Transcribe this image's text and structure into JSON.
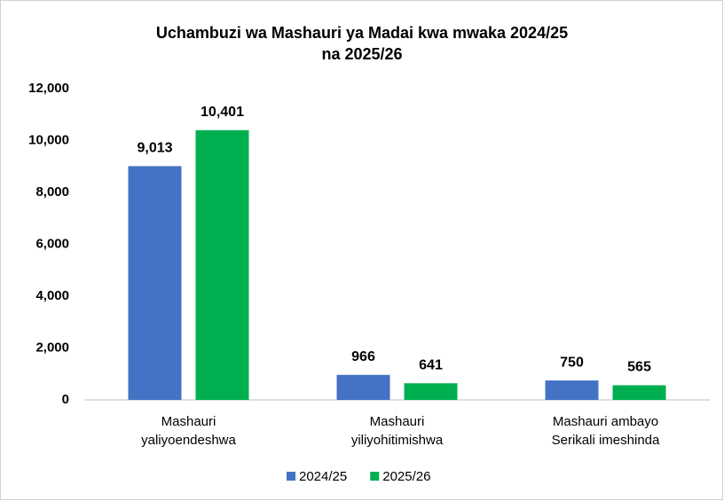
{
  "chart_data": {
    "type": "bar",
    "title": [
      "Uchambuzi wa Mashauri ya Madai kwa mwaka 2024/25",
      "na 2025/26"
    ],
    "categories": [
      [
        "Mashauri",
        "yaliyoendeshwa"
      ],
      [
        "Mashauri",
        "yiliyohitimishwa"
      ],
      [
        "Mashauri ambayo",
        "Serikali imeshinda"
      ]
    ],
    "series": [
      {
        "name": "2024/25",
        "color": "#4472c4",
        "values": [
          9013,
          966,
          750
        ],
        "value_labels": [
          "9,013",
          "966",
          "750"
        ]
      },
      {
        "name": "2025/26",
        "color": "#00b050",
        "values": [
          10401,
          641,
          565
        ],
        "value_labels": [
          "10,401",
          "641",
          "565"
        ]
      }
    ],
    "ylim": [
      0,
      12000
    ],
    "yticks": [
      0,
      {
        "value": 2000,
        "label": "2,000"
      },
      {
        "value": 4000,
        "label": "4,000"
      },
      {
        "value": 6000,
        "label": "6,000"
      },
      {
        "value": 8000,
        "label": "8,000"
      },
      {
        "value": 10000,
        "label": "10,000"
      },
      {
        "value": 12000,
        "label": "12,000"
      }
    ],
    "grid": false,
    "legend": "bottom"
  }
}
